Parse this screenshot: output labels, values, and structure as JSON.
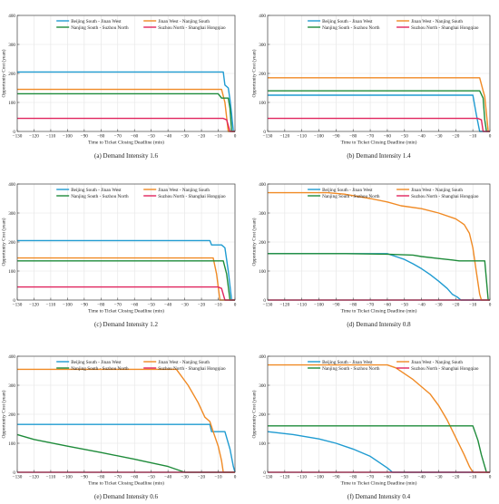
{
  "colors": {
    "bj_jn": "#1f9bd1",
    "jn_nj": "#f08a24",
    "nj_sz": "#1e8b3a",
    "sz_sh": "#e0245e"
  },
  "chart_data": [
    {
      "type": "line",
      "caption": "(a) Demand Intensity 1.6",
      "xlabel": "Time to Ticket Closing Deadline (min)",
      "ylabel": "Opportunity Cost (yuan)",
      "xlim": [
        -130,
        0
      ],
      "ylim": [
        0,
        400
      ],
      "xticks": [
        -130,
        -120,
        -110,
        -100,
        -90,
        -80,
        -70,
        -60,
        -50,
        -40,
        -30,
        -20,
        -10,
        0
      ],
      "yticks": [
        0,
        100,
        200,
        300,
        400
      ],
      "legend_position": "top",
      "series": [
        {
          "name": "Beijing South - Jinan West",
          "color_key": "bj_jn",
          "points": [
            [
              -130,
              205
            ],
            [
              -7,
              205
            ],
            [
              -6,
              160
            ],
            [
              -4,
              150
            ],
            [
              -3,
              110
            ],
            [
              -2,
              60
            ],
            [
              -1,
              0
            ],
            [
              0,
              0
            ]
          ]
        },
        {
          "name": "Jinan West - Nanjing South",
          "color_key": "jn_nj",
          "points": [
            [
              -130,
              145
            ],
            [
              -8,
              145
            ],
            [
              -6,
              100
            ],
            [
              -4,
              0
            ],
            [
              0,
              0
            ]
          ]
        },
        {
          "name": "Nanjing South - Suzhou North",
          "color_key": "nj_sz",
          "points": [
            [
              -130,
              130
            ],
            [
              -10,
              130
            ],
            [
              -8,
              115
            ],
            [
              -4,
              115
            ],
            [
              -3,
              80
            ],
            [
              -2,
              0
            ],
            [
              0,
              0
            ]
          ]
        },
        {
          "name": "Suzhou North - Shanghai Hongqiao",
          "color_key": "sz_sh",
          "points": [
            [
              -130,
              45
            ],
            [
              -7,
              45
            ],
            [
              -5,
              40
            ],
            [
              -3,
              0
            ],
            [
              0,
              0
            ]
          ]
        }
      ]
    },
    {
      "type": "line",
      "caption": "(b) Demand Intensity 1.4",
      "xlabel": "Time to Ticket Closing Deadline (min)",
      "ylabel": "Opportunity Cost (yuan)",
      "xlim": [
        -130,
        0
      ],
      "ylim": [
        0,
        400
      ],
      "xticks": [
        -130,
        -120,
        -110,
        -100,
        -90,
        -80,
        -70,
        -60,
        -50,
        -40,
        -30,
        -20,
        -10,
        0
      ],
      "yticks": [
        0,
        100,
        200,
        300,
        400
      ],
      "legend_position": "top",
      "series": [
        {
          "name": "Beijing South - Jinan West",
          "color_key": "bj_jn",
          "points": [
            [
              -130,
              125
            ],
            [
              -10,
              125
            ],
            [
              -8,
              60
            ],
            [
              -6,
              0
            ],
            [
              0,
              0
            ]
          ]
        },
        {
          "name": "Jinan West - Nanjing South",
          "color_key": "jn_nj",
          "points": [
            [
              -130,
              185
            ],
            [
              -6,
              185
            ],
            [
              -4,
              140
            ],
            [
              -3,
              120
            ],
            [
              -2,
              60
            ],
            [
              -1,
              0
            ],
            [
              0,
              0
            ]
          ]
        },
        {
          "name": "Nanjing South - Suzhou North",
          "color_key": "nj_sz",
          "points": [
            [
              -130,
              140
            ],
            [
              -6,
              140
            ],
            [
              -4,
              115
            ],
            [
              -3,
              40
            ],
            [
              -2,
              0
            ],
            [
              0,
              0
            ]
          ]
        },
        {
          "name": "Suzhou North - Shanghai Hongqiao",
          "color_key": "sz_sh",
          "points": [
            [
              -130,
              45
            ],
            [
              -7,
              45
            ],
            [
              -5,
              40
            ],
            [
              -4,
              0
            ],
            [
              0,
              0
            ]
          ]
        }
      ]
    },
    {
      "type": "line",
      "caption": "(c) Demand Intensity 1.2",
      "xlabel": "Time to Ticket Closing Deadline (min)",
      "ylabel": "Opportunity Cost (yuan)",
      "xlim": [
        -130,
        0
      ],
      "ylim": [
        0,
        400
      ],
      "xticks": [
        -130,
        -120,
        -110,
        -100,
        -90,
        -80,
        -70,
        -60,
        -50,
        -40,
        -30,
        -20,
        -10,
        0
      ],
      "yticks": [
        0,
        100,
        200,
        300,
        400
      ],
      "legend_position": "top",
      "series": [
        {
          "name": "Beijing South - Jinan West",
          "color_key": "bj_jn",
          "points": [
            [
              -130,
              205
            ],
            [
              -15,
              205
            ],
            [
              -14,
              190
            ],
            [
              -8,
              190
            ],
            [
              -6,
              180
            ],
            [
              -4,
              100
            ],
            [
              -2,
              0
            ],
            [
              0,
              0
            ]
          ]
        },
        {
          "name": "Jinan West - Nanjing South",
          "color_key": "jn_nj",
          "points": [
            [
              -130,
              145
            ],
            [
              -13,
              145
            ],
            [
              -11,
              90
            ],
            [
              -9,
              0
            ],
            [
              0,
              0
            ]
          ]
        },
        {
          "name": "Nanjing South - Suzhou North",
          "color_key": "nj_sz",
          "points": [
            [
              -130,
              135
            ],
            [
              -7,
              135
            ],
            [
              -5,
              90
            ],
            [
              -3,
              0
            ],
            [
              0,
              0
            ]
          ]
        },
        {
          "name": "Suzhou North - Shanghai Hongqiao",
          "color_key": "sz_sh",
          "points": [
            [
              -130,
              45
            ],
            [
              -10,
              45
            ],
            [
              -8,
              40
            ],
            [
              -6,
              0
            ],
            [
              0,
              0
            ]
          ]
        }
      ]
    },
    {
      "type": "line",
      "caption": "(d) Demand Intensity 0.8",
      "xlabel": "Time to Ticket Closing Deadline (min)",
      "ylabel": "Opportunity Cost (yuan)",
      "xlim": [
        -130,
        0
      ],
      "ylim": [
        0,
        400
      ],
      "xticks": [
        -130,
        -120,
        -110,
        -100,
        -90,
        -80,
        -70,
        -60,
        -50,
        -40,
        -30,
        -20,
        -10,
        0
      ],
      "yticks": [
        0,
        100,
        200,
        300,
        400
      ],
      "legend_position": "top",
      "series": [
        {
          "name": "Beijing South - Jinan West",
          "color_key": "bj_jn",
          "points": [
            [
              -130,
              160
            ],
            [
              -60,
              160
            ],
            [
              -55,
              150
            ],
            [
              -50,
              140
            ],
            [
              -45,
              125
            ],
            [
              -40,
              108
            ],
            [
              -35,
              88
            ],
            [
              -30,
              65
            ],
            [
              -25,
              40
            ],
            [
              -22,
              20
            ],
            [
              -19,
              10
            ],
            [
              -17,
              0
            ],
            [
              0,
              0
            ]
          ]
        },
        {
          "name": "Jinan West - Nanjing South",
          "color_key": "jn_nj",
          "points": [
            [
              -130,
              370
            ],
            [
              -95,
              370
            ],
            [
              -85,
              365
            ],
            [
              -70,
              350
            ],
            [
              -60,
              338
            ],
            [
              -52,
              325
            ],
            [
              -40,
              315
            ],
            [
              -30,
              300
            ],
            [
              -20,
              280
            ],
            [
              -15,
              260
            ],
            [
              -12,
              230
            ],
            [
              -10,
              180
            ],
            [
              -8,
              100
            ],
            [
              -6,
              20
            ],
            [
              -5,
              0
            ],
            [
              0,
              0
            ]
          ]
        },
        {
          "name": "Nanjing South - Suzhou North",
          "color_key": "nj_sz",
          "points": [
            [
              -130,
              160
            ],
            [
              -85,
              160
            ],
            [
              -60,
              158
            ],
            [
              -45,
              155
            ],
            [
              -40,
              150
            ],
            [
              -30,
              143
            ],
            [
              -22,
              138
            ],
            [
              -18,
              135
            ],
            [
              -3,
              135
            ],
            [
              -1,
              0
            ],
            [
              0,
              0
            ]
          ]
        },
        {
          "name": "Suzhou North - Shanghai Hongqiao",
          "color_key": "sz_sh",
          "points": [
            [
              -130,
              0
            ],
            [
              0,
              0
            ]
          ]
        }
      ]
    },
    {
      "type": "line",
      "caption": "(e) Demand Intensity 0.6",
      "xlabel": "Time to Ticket Closing Deadline (min)",
      "ylabel": "Opportunity Cost (yuan)",
      "xlim": [
        -130,
        0
      ],
      "ylim": [
        0,
        400
      ],
      "xticks": [
        -130,
        -120,
        -110,
        -100,
        -90,
        -80,
        -70,
        -60,
        -50,
        -40,
        -30,
        -20,
        -10,
        0
      ],
      "yticks": [
        0,
        100,
        200,
        300,
        400
      ],
      "legend_position": "top",
      "series": [
        {
          "name": "Beijing South - Jinan West",
          "color_key": "bj_jn",
          "points": [
            [
              -130,
              165
            ],
            [
              -15,
              165
            ],
            [
              -14,
              140
            ],
            [
              -6,
              140
            ],
            [
              -3,
              80
            ],
            [
              -1,
              20
            ],
            [
              0,
              0
            ]
          ]
        },
        {
          "name": "Jinan West - Nanjing South",
          "color_key": "jn_nj",
          "points": [
            [
              -130,
              355
            ],
            [
              -35,
              355
            ],
            [
              -28,
              300
            ],
            [
              -22,
              240
            ],
            [
              -18,
              190
            ],
            [
              -15,
              175
            ],
            [
              -13,
              140
            ],
            [
              -10,
              90
            ],
            [
              -8,
              40
            ],
            [
              -7,
              0
            ],
            [
              0,
              0
            ]
          ]
        },
        {
          "name": "Nanjing South - Suzhou North",
          "color_key": "nj_sz",
          "points": [
            [
              -130,
              130
            ],
            [
              -120,
              113
            ],
            [
              -100,
              90
            ],
            [
              -80,
              68
            ],
            [
              -60,
              45
            ],
            [
              -40,
              20
            ],
            [
              -30,
              0
            ],
            [
              0,
              0
            ]
          ]
        },
        {
          "name": "Suzhou North - Shanghai Hongqiao",
          "color_key": "sz_sh",
          "points": [
            [
              -130,
              0
            ],
            [
              0,
              0
            ]
          ]
        }
      ]
    },
    {
      "type": "line",
      "caption": "(f) Demand Intensity 0.4",
      "xlabel": "Time to Ticket Closing Deadline (min)",
      "ylabel": "Opportunity Cost (yuan)",
      "xlim": [
        -130,
        0
      ],
      "ylim": [
        0,
        400
      ],
      "xticks": [
        -130,
        -120,
        -110,
        -100,
        -90,
        -80,
        -70,
        -60,
        -50,
        -40,
        -30,
        -20,
        -10,
        0
      ],
      "yticks": [
        0,
        100,
        200,
        300,
        400
      ],
      "legend_position": "top",
      "series": [
        {
          "name": "Beijing South - Jinan West",
          "color_key": "bj_jn",
          "points": [
            [
              -130,
              140
            ],
            [
              -115,
              130
            ],
            [
              -100,
              115
            ],
            [
              -90,
              100
            ],
            [
              -80,
              80
            ],
            [
              -70,
              55
            ],
            [
              -65,
              35
            ],
            [
              -60,
              15
            ],
            [
              -57,
              0
            ],
            [
              0,
              0
            ]
          ]
        },
        {
          "name": "Jinan West - Nanjing South",
          "color_key": "jn_nj",
          "points": [
            [
              -130,
              370
            ],
            [
              -60,
              370
            ],
            [
              -55,
              360
            ],
            [
              -45,
              320
            ],
            [
              -35,
              270
            ],
            [
              -30,
              230
            ],
            [
              -25,
              180
            ],
            [
              -20,
              120
            ],
            [
              -15,
              60
            ],
            [
              -12,
              20
            ],
            [
              -10,
              0
            ],
            [
              0,
              0
            ]
          ]
        },
        {
          "name": "Nanjing South - Suzhou North",
          "color_key": "nj_sz",
          "points": [
            [
              -130,
              160
            ],
            [
              -10,
              160
            ],
            [
              -7,
              110
            ],
            [
              -5,
              60
            ],
            [
              -3,
              20
            ],
            [
              -2,
              0
            ],
            [
              0,
              0
            ]
          ]
        },
        {
          "name": "Suzhou North - Shanghai Hongqiao",
          "color_key": "sz_sh",
          "points": [
            [
              -130,
              0
            ],
            [
              0,
              0
            ]
          ]
        }
      ]
    }
  ]
}
